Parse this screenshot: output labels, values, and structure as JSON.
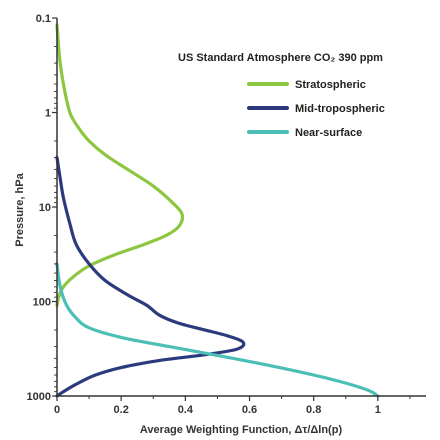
{
  "chart_data": {
    "type": "line",
    "title": "",
    "xlabel": "Average Weighting Function, Δτ/Δln(p)",
    "ylabel": "Pressure, hPa",
    "xlim": [
      0,
      1.15
    ],
    "ylim": [
      1000,
      0.1
    ],
    "y_scale": "log",
    "y_inverted": true,
    "x_ticks": [
      0,
      0.2,
      0.4,
      0.6,
      0.8,
      1
    ],
    "x_tick_labels": [
      "0",
      "0.2",
      "0.4",
      "0.6",
      "0.8",
      "1"
    ],
    "y_ticks": [
      0.1,
      1,
      10,
      100,
      1000
    ],
    "y_tick_labels": [
      "0.1",
      "1",
      "10",
      "100",
      "1000"
    ],
    "grid": false,
    "legend": {
      "title": "US Standard Atmosphere CO₂ 390 ppm",
      "placement": "top-right"
    },
    "series": [
      {
        "name": "Stratospheric",
        "color": "#8dc63f",
        "points": [
          [
            0.0,
            0.12
          ],
          [
            0.005,
            0.2
          ],
          [
            0.01,
            0.3
          ],
          [
            0.02,
            0.5
          ],
          [
            0.04,
            1.0
          ],
          [
            0.07,
            1.5
          ],
          [
            0.1,
            2.0
          ],
          [
            0.15,
            2.8
          ],
          [
            0.22,
            4.0
          ],
          [
            0.3,
            6.0
          ],
          [
            0.36,
            9.0
          ],
          [
            0.39,
            12.0
          ],
          [
            0.38,
            16.0
          ],
          [
            0.34,
            20.0
          ],
          [
            0.27,
            25.0
          ],
          [
            0.18,
            32.0
          ],
          [
            0.1,
            42.0
          ],
          [
            0.05,
            55.0
          ],
          [
            0.02,
            70.0
          ],
          [
            0.005,
            90.0
          ],
          [
            0.0,
            110.0
          ]
        ]
      },
      {
        "name": "Mid-tropospheric",
        "color": "#2b3a7c",
        "points": [
          [
            0.0,
            3.0
          ],
          [
            0.01,
            5.0
          ],
          [
            0.02,
            8.0
          ],
          [
            0.04,
            15.0
          ],
          [
            0.06,
            25.0
          ],
          [
            0.1,
            40.0
          ],
          [
            0.15,
            60.0
          ],
          [
            0.22,
            85.0
          ],
          [
            0.28,
            110.0
          ],
          [
            0.32,
            140.0
          ],
          [
            0.38,
            170.0
          ],
          [
            0.46,
            200.0
          ],
          [
            0.53,
            230.0
          ],
          [
            0.58,
            270.0
          ],
          [
            0.56,
            320.0
          ],
          [
            0.45,
            370.0
          ],
          [
            0.32,
            420.0
          ],
          [
            0.2,
            500.0
          ],
          [
            0.12,
            600.0
          ],
          [
            0.06,
            750.0
          ],
          [
            0.02,
            900.0
          ],
          [
            0.0,
            1000.0
          ]
        ]
      },
      {
        "name": "Near-surface",
        "color": "#4bbfb5",
        "points": [
          [
            0.0,
            40.0
          ],
          [
            0.01,
            70.0
          ],
          [
            0.03,
            110.0
          ],
          [
            0.06,
            150.0
          ],
          [
            0.1,
            190.0
          ],
          [
            0.2,
            240.0
          ],
          [
            0.35,
            300.0
          ],
          [
            0.55,
            400.0
          ],
          [
            0.75,
            550.0
          ],
          [
            0.88,
            700.0
          ],
          [
            0.97,
            870.0
          ],
          [
            1.0,
            1000.0
          ]
        ]
      }
    ]
  }
}
